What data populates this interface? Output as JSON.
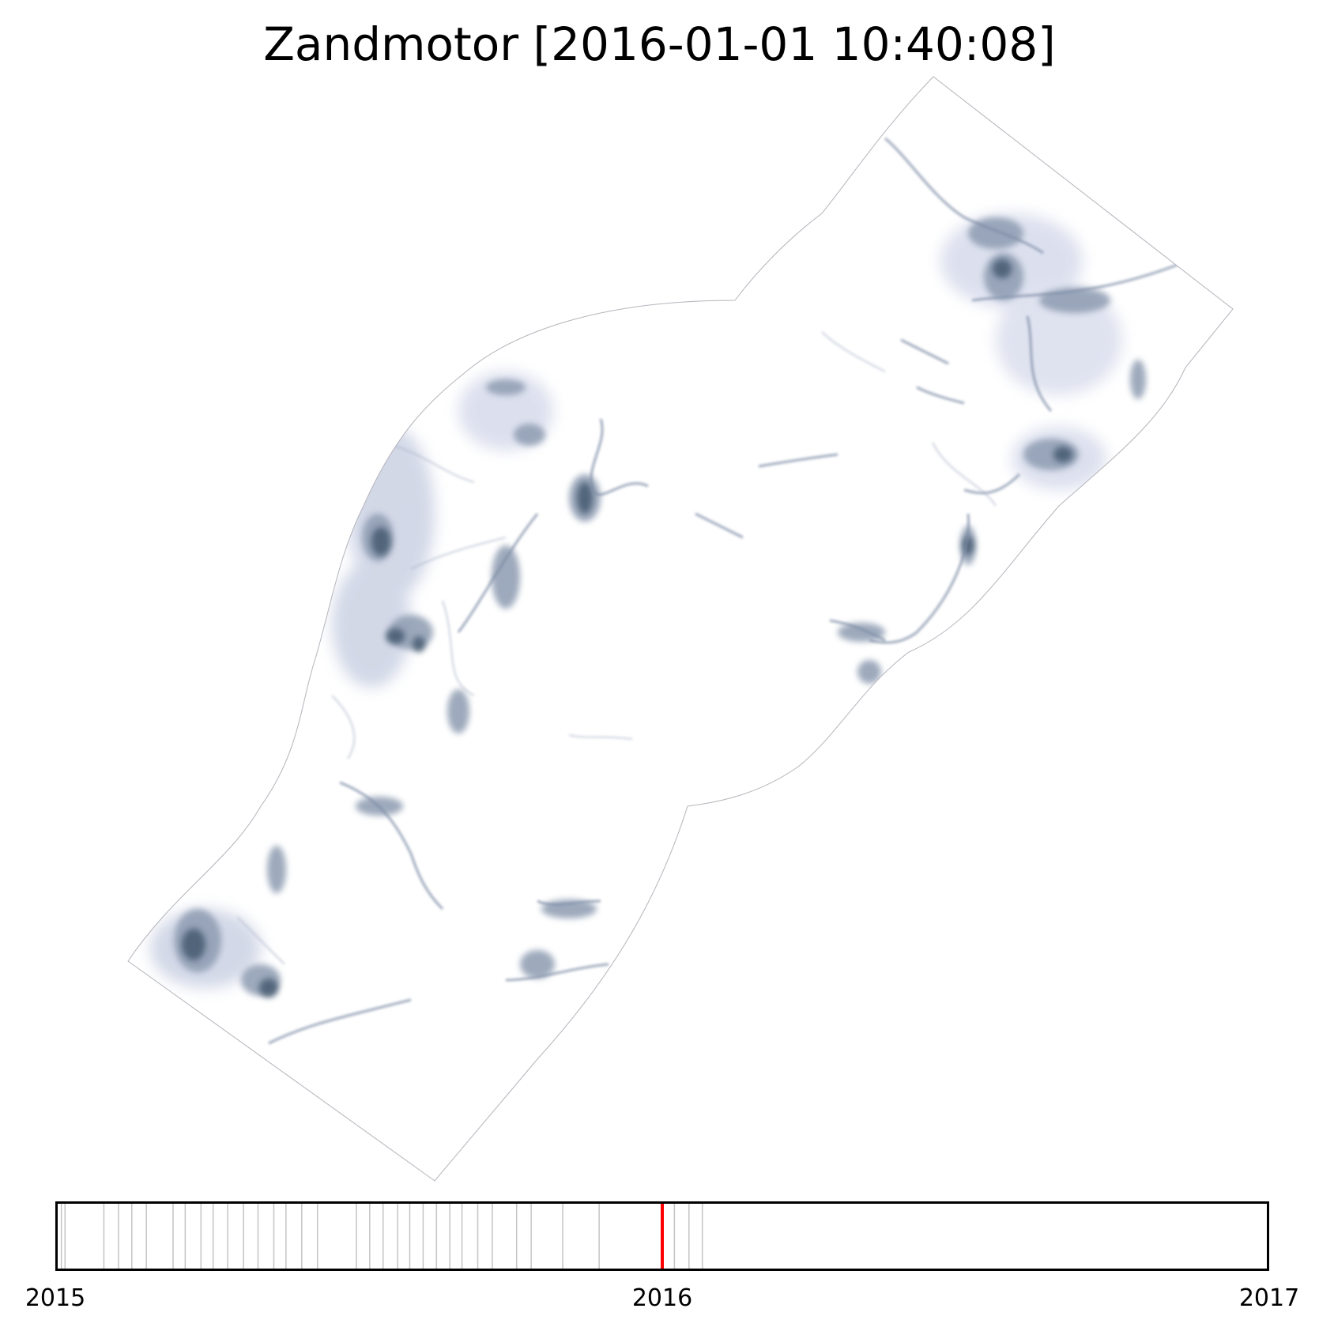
{
  "title": "Zandmotor [2016-01-01 10:40:08]",
  "map": {
    "colors": {
      "outline": "#b4b4bc",
      "water_dark": "#445a70",
      "water_light": "#c8cfe2"
    }
  },
  "timeline": {
    "start_label": "2015",
    "mid_label": "2016",
    "end_label": "2017",
    "start_year": 2015,
    "end_year": 2017,
    "current_date": "2016-01-01",
    "current_fraction": 0.5,
    "colors": {
      "frame": "#000000",
      "tick": "#c4c4c4",
      "current": "#ff0000"
    },
    "snapshot_fractions": [
      0.005,
      0.008,
      0.04,
      0.052,
      0.063,
      0.075,
      0.097,
      0.107,
      0.12,
      0.13,
      0.142,
      0.155,
      0.167,
      0.18,
      0.19,
      0.203,
      0.216,
      0.248,
      0.259,
      0.27,
      0.282,
      0.292,
      0.303,
      0.314,
      0.325,
      0.335,
      0.348,
      0.36,
      0.38,
      0.392,
      0.418,
      0.448,
      0.5,
      0.51,
      0.522,
      0.533
    ]
  }
}
